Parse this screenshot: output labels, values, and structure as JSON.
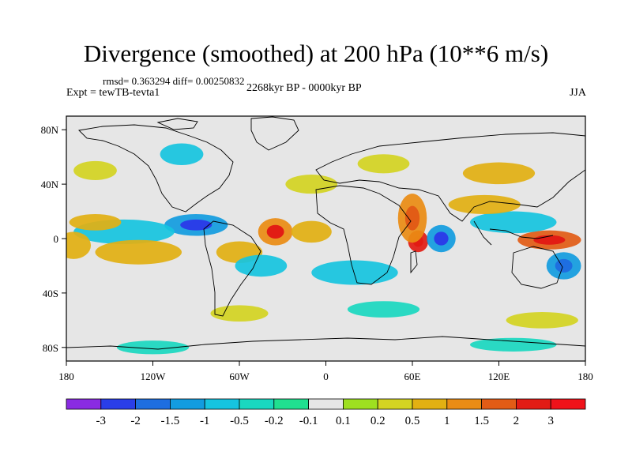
{
  "title": "Divergence (smoothed) at 200 hPa (10**6 m/s)",
  "stats": "rmsd= 0.363294 diff= 0.00250832",
  "experiment": "Expt = tewTB-tevta1",
  "period": "2268kyr BP - 0000kyr BP",
  "season": "JJA",
  "chart_data": {
    "type": "heatmap",
    "description_units": "10**6 m/s",
    "x_range": [
      -180,
      180
    ],
    "y_range": [
      -90,
      90
    ],
    "x_ticks": [
      {
        "value": -180,
        "label": "180"
      },
      {
        "value": -120,
        "label": "120W"
      },
      {
        "value": -60,
        "label": "60W"
      },
      {
        "value": 0,
        "label": "0"
      },
      {
        "value": 60,
        "label": "60E"
      },
      {
        "value": 120,
        "label": "120E"
      },
      {
        "value": 180,
        "label": "180"
      }
    ],
    "y_ticks": [
      {
        "value": 80,
        "label": "80N"
      },
      {
        "value": 40,
        "label": "40N"
      },
      {
        "value": 0,
        "label": "0"
      },
      {
        "value": -40,
        "label": "40S"
      },
      {
        "value": -80,
        "label": "80S"
      }
    ],
    "colorbar": {
      "levels": [
        {
          "label": "-3",
          "color": "#8a2be2"
        },
        {
          "label": "-2",
          "color": "#2a3ee8"
        },
        {
          "label": "-1.5",
          "color": "#1e6ee0"
        },
        {
          "label": "-1",
          "color": "#129ce0"
        },
        {
          "label": "-0.5",
          "color": "#16c4e0"
        },
        {
          "label": "-0.2",
          "color": "#1ad8c0"
        },
        {
          "label": "-0.1",
          "color": "#20e090"
        },
        {
          "label": "0.1",
          "color": "#e6e6e6"
        },
        {
          "label": "0.2",
          "color": "#9ee020"
        },
        {
          "label": "0.5",
          "color": "#d4d422"
        },
        {
          "label": "1",
          "color": "#e2b012"
        },
        {
          "label": "1.5",
          "color": "#ea8c14"
        },
        {
          "label": "2",
          "color": "#e25c16"
        },
        {
          "label": "3",
          "color": "#e21c14"
        }
      ],
      "extra_colors": [
        "#f0121a"
      ],
      "neutral_color": "#e6e6e6"
    },
    "blobs": [
      {
        "lon": -90,
        "lat": 10,
        "rx": 22,
        "ry": 8,
        "value": -1.2
      },
      {
        "lon": -140,
        "lat": 5,
        "rx": 35,
        "ry": 9,
        "value": -0.6
      },
      {
        "lon": -160,
        "lat": 12,
        "rx": 18,
        "ry": 6,
        "value": 0.7
      },
      {
        "lon": -175,
        "lat": -5,
        "rx": 12,
        "ry": 10,
        "value": 0.6
      },
      {
        "lon": -130,
        "lat": -10,
        "rx": 30,
        "ry": 9,
        "value": 0.5
      },
      {
        "lon": -60,
        "lat": -10,
        "rx": 16,
        "ry": 8,
        "value": 0.6
      },
      {
        "lon": -35,
        "lat": 5,
        "rx": 12,
        "ry": 10,
        "value": 1.3
      },
      {
        "lon": -45,
        "lat": -20,
        "rx": 18,
        "ry": 8,
        "value": -0.6
      },
      {
        "lon": -10,
        "lat": 5,
        "rx": 14,
        "ry": 8,
        "value": 0.8
      },
      {
        "lon": 20,
        "lat": -25,
        "rx": 30,
        "ry": 9,
        "value": -0.6
      },
      {
        "lon": 64,
        "lat": -2,
        "rx": 7,
        "ry": 8,
        "value": 2.2
      },
      {
        "lon": 60,
        "lat": 15,
        "rx": 10,
        "ry": 18,
        "value": 1.1
      },
      {
        "lon": 80,
        "lat": 0,
        "rx": 10,
        "ry": 10,
        "value": -1.3
      },
      {
        "lon": 155,
        "lat": -1,
        "rx": 22,
        "ry": 7,
        "value": 1.8
      },
      {
        "lon": 130,
        "lat": 12,
        "rx": 30,
        "ry": 8,
        "value": -0.8
      },
      {
        "lon": 165,
        "lat": -20,
        "rx": 12,
        "ry": 10,
        "value": -1.0
      },
      {
        "lon": 110,
        "lat": 25,
        "rx": 25,
        "ry": 7,
        "value": 0.5
      },
      {
        "lon": 120,
        "lat": 48,
        "rx": 25,
        "ry": 8,
        "value": 0.6
      },
      {
        "lon": -10,
        "lat": 40,
        "rx": 18,
        "ry": 7,
        "value": 0.4
      },
      {
        "lon": 40,
        "lat": 55,
        "rx": 18,
        "ry": 7,
        "value": 0.4
      },
      {
        "lon": -160,
        "lat": 50,
        "rx": 15,
        "ry": 7,
        "value": 0.4
      },
      {
        "lon": -100,
        "lat": 62,
        "rx": 15,
        "ry": 8,
        "value": -0.5
      },
      {
        "lon": -60,
        "lat": -55,
        "rx": 20,
        "ry": 6,
        "value": 0.4
      },
      {
        "lon": 40,
        "lat": -52,
        "rx": 25,
        "ry": 6,
        "value": -0.4
      },
      {
        "lon": 150,
        "lat": -60,
        "rx": 25,
        "ry": 6,
        "value": 0.4
      },
      {
        "lon": -120,
        "lat": -80,
        "rx": 25,
        "ry": 5,
        "value": -0.4
      },
      {
        "lon": 130,
        "lat": -78,
        "rx": 30,
        "ry": 5,
        "value": -0.4
      }
    ]
  }
}
